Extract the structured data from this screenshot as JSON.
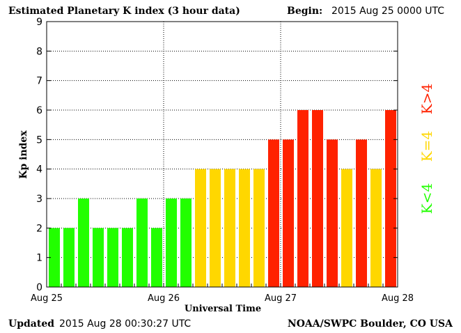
{
  "header": {
    "title": "Estimated Planetary K index (3 hour data)",
    "begin_label": "Begin:",
    "begin_value": "2015 Aug 25 0000 UTC"
  },
  "footer": {
    "updated_label": "Updated",
    "updated_value": "2015 Aug 28 00:30:27 UTC",
    "source": "NOAA/SWPC Boulder, CO USA"
  },
  "legend": {
    "low": "K<4",
    "mid": "K=4",
    "high": "K>4"
  },
  "colors": {
    "low": "#22ff00",
    "mid": "#ffd700",
    "high": "#ff2200"
  },
  "chart_data": {
    "type": "bar",
    "title": "Estimated Planetary K index (3 hour data)",
    "xlabel": "Universal Time",
    "ylabel": "Kp index",
    "ylim": [
      0,
      9
    ],
    "yticks": [
      "0",
      "1",
      "2",
      "3",
      "4",
      "5",
      "6",
      "7",
      "8",
      "9"
    ],
    "xticks": [
      "Aug 25",
      "Aug 26",
      "Aug 27",
      "Aug 28"
    ],
    "grid": true,
    "values": [
      2,
      2,
      3,
      2,
      2,
      2,
      3,
      2,
      3,
      3,
      4,
      4,
      4,
      4,
      4,
      5,
      5,
      6,
      6,
      5,
      4,
      5,
      4,
      6
    ]
  }
}
